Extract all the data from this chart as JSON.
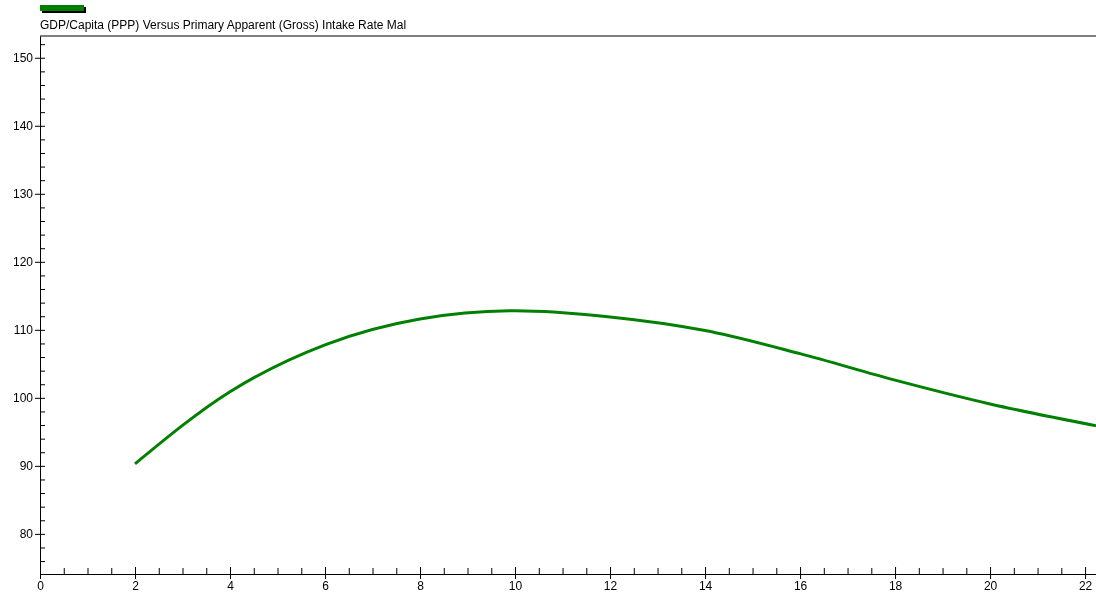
{
  "chart_data": {
    "type": "line",
    "x": [
      2,
      4,
      6,
      8,
      10,
      12,
      14,
      16,
      18,
      20,
      22.23
    ],
    "series": [
      {
        "name": "GDP/Capita (PPP) Versus Primary Apparent (Gross) Intake Rate Mal",
        "color": "#008000",
        "values": [
          90.3,
          100.9,
          107.8,
          111.6,
          112.8,
          111.9,
          109.9,
          106.5,
          102.6,
          99.1,
          95.9
        ]
      }
    ],
    "xlim": [
      0,
      22.23
    ],
    "ylim": [
      74.1,
      153.2
    ],
    "xticks": [
      0,
      {
        "value": 0.5,
        "label": null
      },
      {
        "value": 1,
        "label": null
      },
      {
        "value": 1.5,
        "label": null
      },
      2,
      {
        "value": 2.5,
        "label": null
      },
      {
        "value": 3,
        "label": null
      },
      {
        "value": 3.5,
        "label": null
      },
      4,
      {
        "value": 4.5,
        "label": null
      },
      {
        "value": 5,
        "label": null
      },
      {
        "value": 5.5,
        "label": null
      },
      6,
      {
        "value": 6.5,
        "label": null
      },
      {
        "value": 7,
        "label": null
      },
      {
        "value": 7.5,
        "label": null
      },
      8,
      {
        "value": 8.5,
        "label": null
      },
      {
        "value": 9,
        "label": null
      },
      {
        "value": 9.5,
        "label": null
      },
      10,
      {
        "value": 10.5,
        "label": null
      },
      {
        "value": 11,
        "label": null
      },
      {
        "value": 11.5,
        "label": null
      },
      12,
      {
        "value": 12.5,
        "label": null
      },
      {
        "value": 13,
        "label": null
      },
      {
        "value": 13.5,
        "label": null
      },
      14,
      {
        "value": 14.5,
        "label": null
      },
      {
        "value": 15,
        "label": null
      },
      {
        "value": 15.5,
        "label": null
      },
      16,
      {
        "value": 16.5,
        "label": null
      },
      {
        "value": 17,
        "label": null
      },
      {
        "value": 17.5,
        "label": null
      },
      18,
      {
        "value": 18.5,
        "label": null
      },
      {
        "value": 19,
        "label": null
      },
      {
        "value": 19.5,
        "label": null
      },
      20,
      {
        "value": 20.5,
        "label": null
      },
      {
        "value": 21,
        "label": null
      },
      {
        "value": 21.5,
        "label": null
      },
      22
    ],
    "yticks": [
      {
        "value": 76,
        "label": null
      },
      {
        "value": 78,
        "label": null
      },
      80,
      {
        "value": 82,
        "label": null
      },
      {
        "value": 84,
        "label": null
      },
      {
        "value": 86,
        "label": null
      },
      {
        "value": 88,
        "label": null
      },
      90,
      {
        "value": 92,
        "label": null
      },
      {
        "value": 94,
        "label": null
      },
      {
        "value": 96,
        "label": null
      },
      {
        "value": 98,
        "label": null
      },
      100,
      {
        "value": 102,
        "label": null
      },
      {
        "value": 104,
        "label": null
      },
      {
        "value": 106,
        "label": null
      },
      {
        "value": 108,
        "label": null
      },
      110,
      {
        "value": 112,
        "label": null
      },
      {
        "value": 114,
        "label": null
      },
      {
        "value": 116,
        "label": null
      },
      {
        "value": 118,
        "label": null
      },
      120,
      {
        "value": 122,
        "label": null
      },
      {
        "value": 124,
        "label": null
      },
      {
        "value": 126,
        "label": null
      },
      {
        "value": 128,
        "label": null
      },
      130,
      {
        "value": 132,
        "label": null
      },
      {
        "value": 134,
        "label": null
      },
      {
        "value": 136,
        "label": null
      },
      {
        "value": 138,
        "label": null
      },
      140,
      {
        "value": 142,
        "label": null
      },
      {
        "value": 144,
        "label": null
      },
      {
        "value": 146,
        "label": null
      },
      {
        "value": 148,
        "label": null
      },
      150,
      {
        "value": 152,
        "label": null
      }
    ],
    "legend": "top left",
    "grid": false,
    "marker": "none",
    "line_style": "solid"
  }
}
